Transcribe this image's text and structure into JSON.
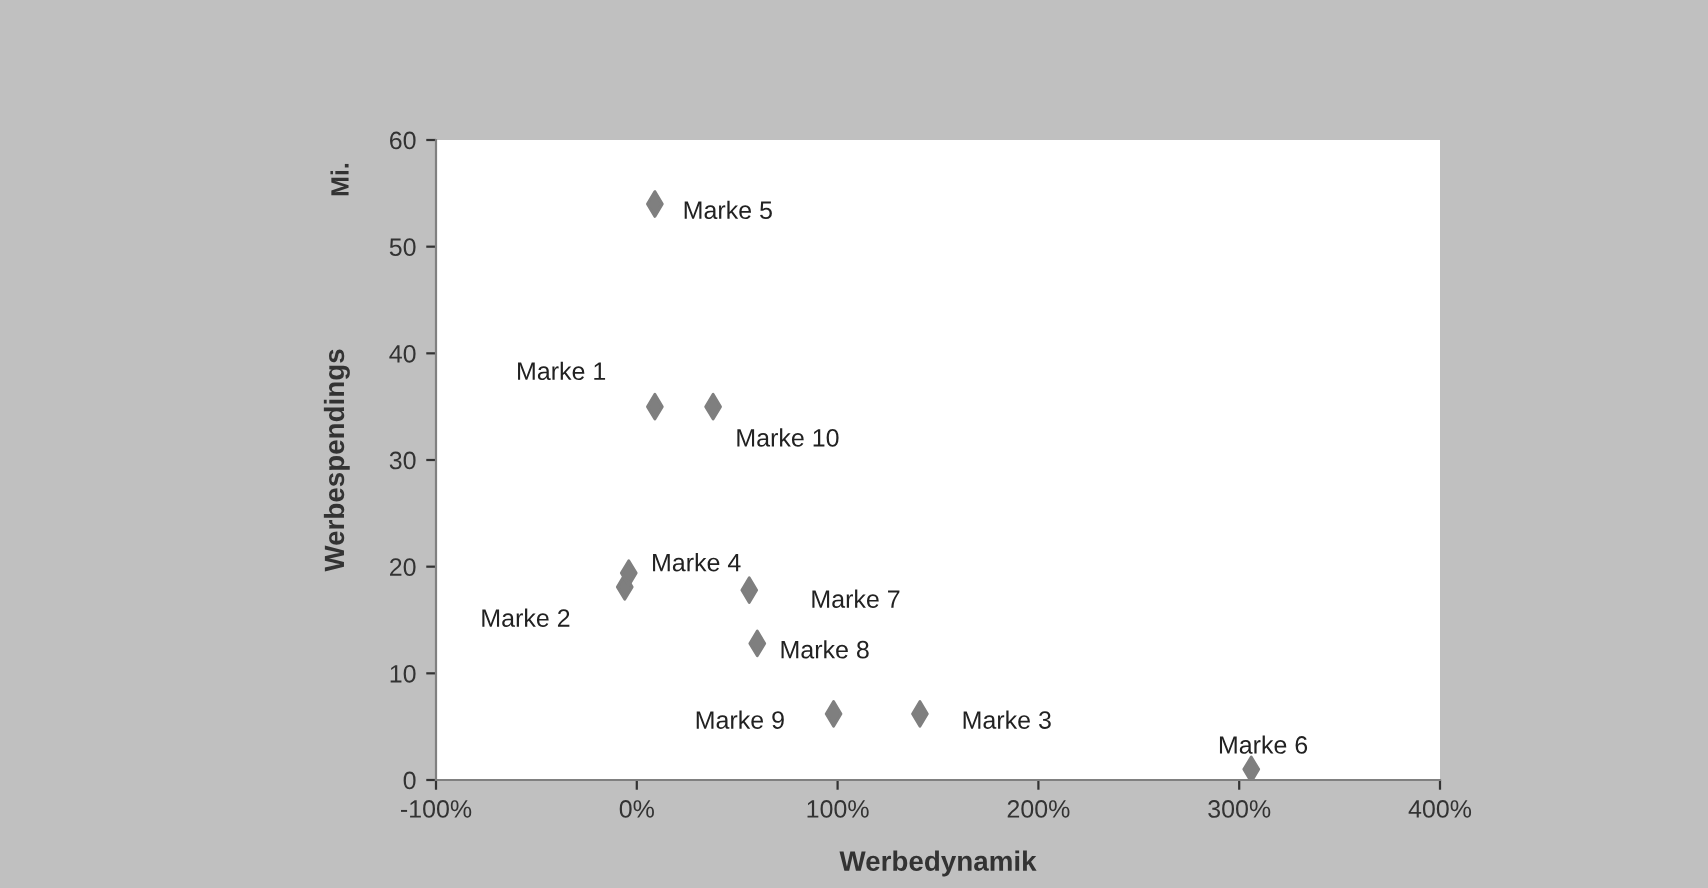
{
  "chart_data": {
    "type": "scatter",
    "xlabel": "Werbedynamik",
    "ylabel": "Werbespendings",
    "series": [
      {
        "color": "#7f7f7f",
        "x": [
          9,
          -6,
          141,
          -4,
          9,
          306,
          56,
          60,
          98,
          38
        ],
        "values": [
          35,
          18.1,
          6.2,
          19.4,
          54,
          1.0,
          17.8,
          12.8,
          6.2,
          35
        ]
      }
    ],
    "annotations": [
      "Mi.",
      {
        "text": "Marke 1",
        "x": 9,
        "y": 35
      },
      {
        "text": "Marke 2",
        "x": -6,
        "y": 18.1
      },
      {
        "text": "Marke 3",
        "x": 141,
        "y": 6.2
      },
      {
        "text": "Marke 4",
        "x": -4,
        "y": 19.4
      },
      {
        "text": "Marke 5",
        "x": 9,
        "y": 54
      },
      {
        "text": "Marke 6",
        "x": 306,
        "y": 1.0
      },
      {
        "text": "Marke 7",
        "x": 56,
        "y": 17.8
      },
      {
        "text": "Marke 8",
        "x": 60,
        "y": 12.8
      },
      {
        "text": "Marke 9",
        "x": 98,
        "y": 6.2
      },
      {
        "text": "Marke 10",
        "x": 38,
        "y": 35
      }
    ],
    "xlim": [
      -100,
      400
    ],
    "xticks": [
      {
        "value": -100,
        "label": "-100%"
      },
      {
        "value": 0,
        "label": "0%"
      },
      {
        "value": 100,
        "label": "100%"
      },
      {
        "value": 200,
        "label": "200%"
      },
      {
        "value": 300,
        "label": "300%"
      },
      {
        "value": 400,
        "label": "400%"
      }
    ],
    "ylim": [
      0,
      60
    ],
    "yticks": [
      0,
      10,
      20,
      30,
      40,
      50,
      60
    ],
    "grid": false,
    "legend": false,
    "marker": "diamond"
  }
}
